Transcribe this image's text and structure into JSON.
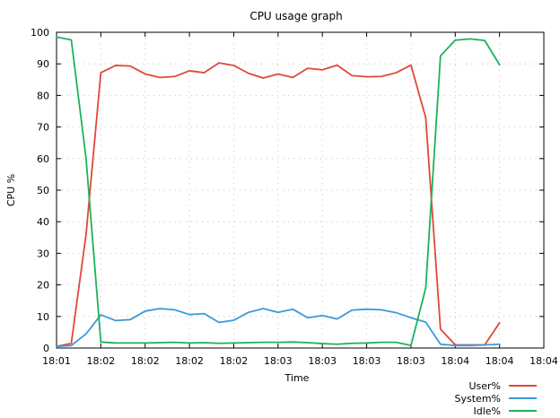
{
  "chart_data": {
    "type": "line",
    "title": "CPU usage graph",
    "xlabel": "Time",
    "ylabel": "CPU %",
    "ylim": [
      0,
      100
    ],
    "xlim_index": [
      0,
      33
    ],
    "x_tick_labels": [
      "18:01",
      "18:02",
      "18:02",
      "18:02",
      "18:02",
      "18:03",
      "18:03",
      "18:03",
      "18:03",
      "18:04",
      "18:04",
      "18:04"
    ],
    "y_tick_labels": [
      "0",
      "10",
      "20",
      "30",
      "40",
      "50",
      "60",
      "70",
      "80",
      "90",
      "100"
    ],
    "grid": true,
    "legend_placement": "bottom-right",
    "series": [
      {
        "name": "User%",
        "color": "#e0483a",
        "values": [
          0.5,
          1.5,
          36,
          87.2,
          89.5,
          89.3,
          86.8,
          85.7,
          86.0,
          87.8,
          87.2,
          90.3,
          89.5,
          87.0,
          85.5,
          86.8,
          85.7,
          88.6,
          88.1,
          89.6,
          86.3,
          85.9,
          86.0,
          87.2,
          89.6,
          73,
          6,
          1.0,
          1.0,
          1.0,
          8
        ]
      },
      {
        "name": "System%",
        "color": "#3b9ad8",
        "values": [
          0.5,
          0.8,
          4.5,
          10.5,
          8.7,
          9.0,
          11.7,
          12.5,
          12.1,
          10.6,
          10.9,
          8.1,
          8.8,
          11.3,
          12.5,
          11.3,
          12.3,
          9.6,
          10.3,
          9.2,
          12.0,
          12.3,
          12.1,
          11.2,
          9.6,
          8.2,
          1.2,
          0.8,
          0.8,
          1.0,
          1.2
        ]
      },
      {
        "name": "Idle%",
        "color": "#1cb25c",
        "values": [
          98.5,
          97.6,
          60,
          1.9,
          1.6,
          1.6,
          1.6,
          1.7,
          1.8,
          1.6,
          1.7,
          1.5,
          1.6,
          1.7,
          1.8,
          1.8,
          1.9,
          1.7,
          1.4,
          1.2,
          1.5,
          1.6,
          1.8,
          1.8,
          0.8,
          19,
          92.5,
          97.5,
          97.9,
          97.4,
          89.7
        ]
      }
    ]
  }
}
